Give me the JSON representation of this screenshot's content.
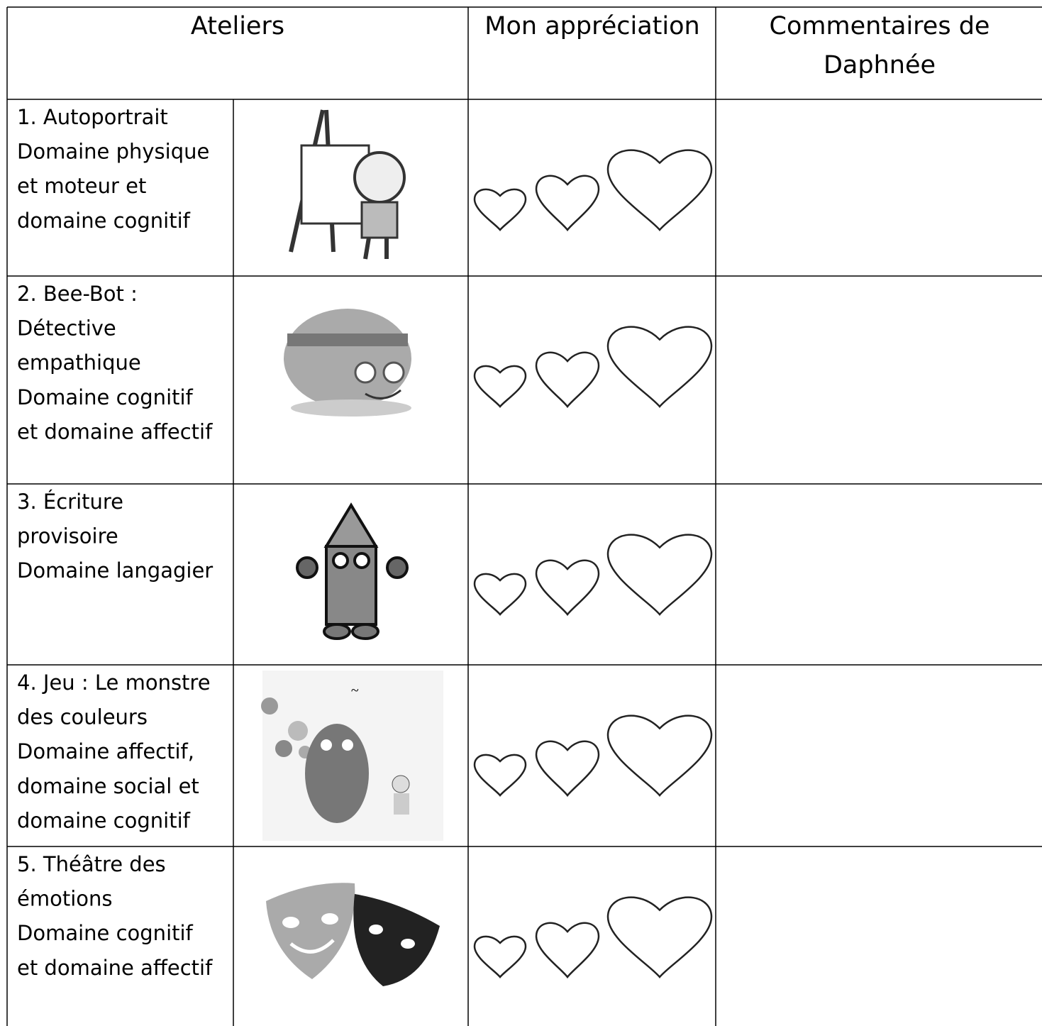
{
  "header": {
    "columns": [
      {
        "lines": [
          "Ateliers"
        ]
      },
      {
        "lines": [
          "Mon appréciation"
        ]
      },
      {
        "lines": [
          "Commentaires de",
          "Daphnée"
        ]
      }
    ]
  },
  "table": {
    "rows": [
      {
        "lines": [
          "1. Autoportrait",
          "Domaine physique",
          "et moteur et",
          "domaine cognitif"
        ]
      },
      {
        "lines": [
          "2. Bee-Bot :",
          "Détective",
          "empathique",
          "Domaine cognitif",
          "et domaine affectif"
        ]
      },
      {
        "lines": [
          "3. Écriture",
          "provisoire",
          "Domaine langagier"
        ]
      },
      {
        "lines": [
          "4. Jeu : Le monstre",
          "des couleurs",
          "Domaine affectif,",
          "domaine social et",
          "domaine cognitif"
        ]
      },
      {
        "lines": [
          "5. Théâtre des",
          "émotions",
          "Domaine cognitif",
          "et domaine affectif"
        ]
      }
    ]
  }
}
